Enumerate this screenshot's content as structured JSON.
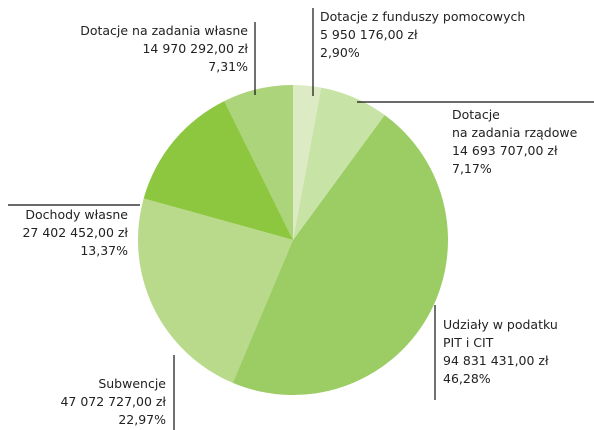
{
  "chart_data": {
    "type": "pie",
    "categories": [
      "Dotacje z funduszy pomocowych",
      "Dotacje\nna zadania rządowe",
      "Udziały w podatku\nPIT i CIT",
      "Subwencje",
      "Dochody własne",
      "Dotacje na zadania własne"
    ],
    "amounts": [
      "5 950 176,00 zł",
      "14 693 707,00 zł",
      "94 831 431,00 zł",
      "47 072 727,00 zł",
      "27 402 452,00 zł",
      "14 970 292,00 zł"
    ],
    "values": [
      2.9,
      7.17,
      46.28,
      22.97,
      13.37,
      7.31
    ],
    "value_labels": [
      "2,90%",
      "7,17%",
      "46,28%",
      "22,97%",
      "13,37%",
      "7,31%"
    ],
    "colors": [
      "#dcebc4",
      "#c8e3a6",
      "#9ccc64",
      "#b8da8a",
      "#8dc63f",
      "#acd47a"
    ]
  }
}
